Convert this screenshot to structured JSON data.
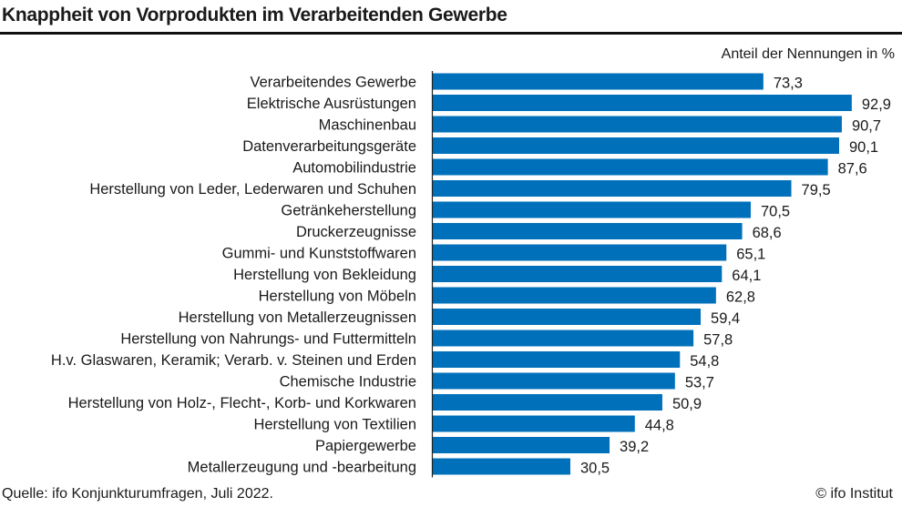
{
  "chart_data": {
    "type": "bar",
    "orientation": "horizontal",
    "title": "Knappheit von Vorprodukten im Verarbeitenden Gewerbe",
    "unit_label": "Anteil der Nennungen in %",
    "source": "Quelle: ifo Konjunkturumfragen, Juli 2022.",
    "copyright": "© ifo Institut",
    "bar_color": "#0070BA",
    "grid": false,
    "xlim": [
      0,
      100
    ],
    "categories": [
      "Verarbeitendes Gewerbe",
      "Elektrische Ausrüstungen",
      "Maschinenbau",
      "Datenverarbeitungsgeräte",
      "Automobilindustrie",
      "Herstellung von Leder, Lederwaren und Schuhen",
      "Getränkeherstellung",
      "Druckerzeugnisse",
      "Gummi- und Kunststoffwaren",
      "Herstellung von Bekleidung",
      "Herstellung von Möbeln",
      "Herstellung von Metallerzeugnissen",
      "Herstellung von Nahrungs- und Futtermitteln",
      "H.v. Glaswaren, Keramik; Verarb. v. Steinen und Erden",
      "Chemische Industrie",
      "Herstellung von Holz-, Flecht-, Korb- und Korkwaren",
      "Herstellung von Textilien",
      "Papiergewerbe",
      "Metallerzeugung und -bearbeitung"
    ],
    "values": [
      73.3,
      92.9,
      90.7,
      90.1,
      87.6,
      79.5,
      70.5,
      68.6,
      65.1,
      64.1,
      62.8,
      59.4,
      57.8,
      54.8,
      53.7,
      50.9,
      44.8,
      39.2,
      30.5
    ],
    "value_labels": [
      "73,3",
      "92,9",
      "90,7",
      "90,1",
      "87,6",
      "79,5",
      "70,5",
      "68,6",
      "65,1",
      "64,1",
      "62,8",
      "59,4",
      "57,8",
      "54,8",
      "53,7",
      "50,9",
      "44,8",
      "39,2",
      "30,5"
    ]
  }
}
